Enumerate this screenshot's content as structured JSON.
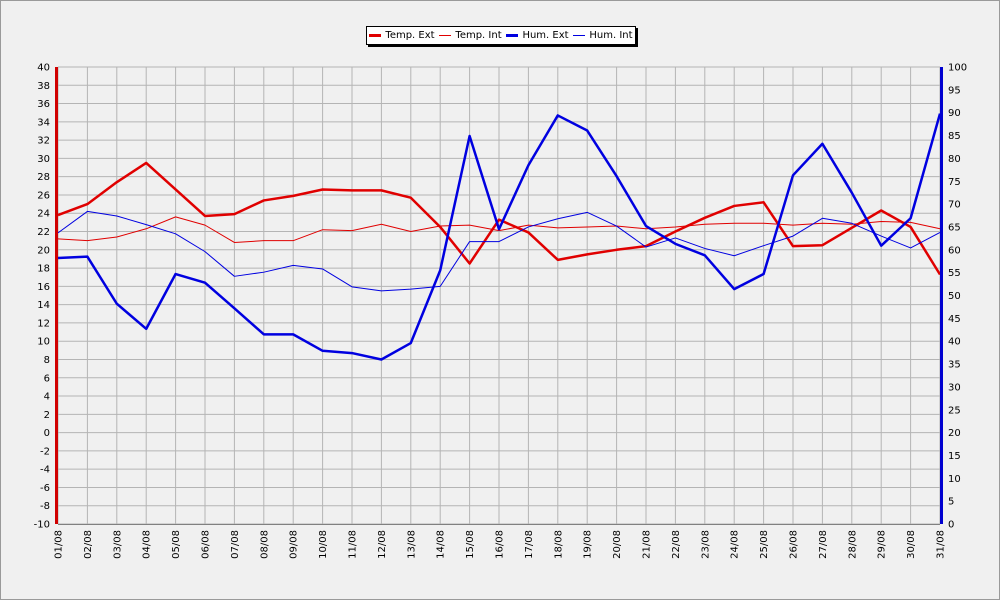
{
  "chart_data": {
    "type": "line",
    "categories": [
      "01/08",
      "02/08",
      "03/08",
      "04/08",
      "05/08",
      "06/08",
      "07/08",
      "08/08",
      "09/08",
      "10/08",
      "11/08",
      "12/08",
      "13/08",
      "14/08",
      "15/08",
      "16/08",
      "17/08",
      "18/08",
      "19/08",
      "20/08",
      "21/08",
      "22/08",
      "23/08",
      "24/08",
      "25/08",
      "26/08",
      "27/08",
      "28/08",
      "29/08",
      "30/08",
      "31/08"
    ],
    "y_left": {
      "ylim": [
        -10,
        40
      ],
      "ticks": [
        40,
        38,
        36,
        34,
        32,
        30,
        28,
        26,
        24,
        22,
        20,
        18,
        16,
        14,
        12,
        10,
        8,
        6,
        4,
        2,
        0,
        -2,
        -4,
        -6,
        -8,
        -10
      ]
    },
    "y_right": {
      "ylim": [
        0,
        100
      ],
      "ticks": [
        100,
        95,
        90,
        85,
        80,
        75,
        70,
        65,
        60,
        55,
        50,
        45,
        40,
        35,
        30,
        25,
        20,
        15,
        10,
        5,
        0
      ]
    },
    "grid": true,
    "legend_position": "top-center",
    "series": [
      {
        "name": "Temp. Ext",
        "axis": "left",
        "color": "#e00000",
        "weight": "thick",
        "values": [
          23.8,
          25.0,
          27.4,
          29.5,
          26.6,
          23.7,
          23.9,
          25.4,
          25.9,
          26.6,
          26.5,
          26.5,
          25.7,
          22.5,
          18.5,
          23.3,
          21.9,
          18.9,
          19.5,
          20.0,
          20.4,
          22.0,
          23.5,
          24.8,
          25.2,
          20.4,
          20.5,
          22.4,
          24.3,
          22.5,
          17.3
        ]
      },
      {
        "name": "Temp. Int",
        "axis": "left",
        "color": "#e00000",
        "weight": "thin",
        "values": [
          21.2,
          21.0,
          21.4,
          22.3,
          23.6,
          22.7,
          20.8,
          21.0,
          21.0,
          22.2,
          22.1,
          22.8,
          22.0,
          22.6,
          22.7,
          22.1,
          22.7,
          22.4,
          22.5,
          22.6,
          22.3,
          22.5,
          22.8,
          22.9,
          22.9,
          22.7,
          22.9,
          22.8,
          23.1,
          23.0,
          22.3
        ]
      },
      {
        "name": "Hum. Ext",
        "axis": "right",
        "color": "#0000e0",
        "weight": "thick",
        "values": [
          58.2,
          58.5,
          48.2,
          42.7,
          54.7,
          52.8,
          47.2,
          41.5,
          41.5,
          37.9,
          37.4,
          36.0,
          39.6,
          55.5,
          84.9,
          64.5,
          78.5,
          89.4,
          86.1,
          76.1,
          65.2,
          61.3,
          58.8,
          51.4,
          54.7,
          76.3,
          83.2,
          72.5,
          60.9,
          66.9,
          89.8
        ]
      },
      {
        "name": "Hum. Int",
        "axis": "right",
        "color": "#0000e0",
        "weight": "thin",
        "values": [
          63.7,
          68.4,
          67.4,
          65.5,
          63.5,
          59.6,
          54.2,
          55.1,
          56.6,
          55.8,
          51.9,
          51.0,
          51.4,
          52.0,
          61.8,
          61.8,
          65.0,
          66.8,
          68.2,
          65.2,
          60.6,
          62.6,
          60.3,
          58.7,
          60.9,
          63.0,
          66.9,
          65.8,
          63.0,
          60.4,
          63.8
        ]
      }
    ]
  }
}
